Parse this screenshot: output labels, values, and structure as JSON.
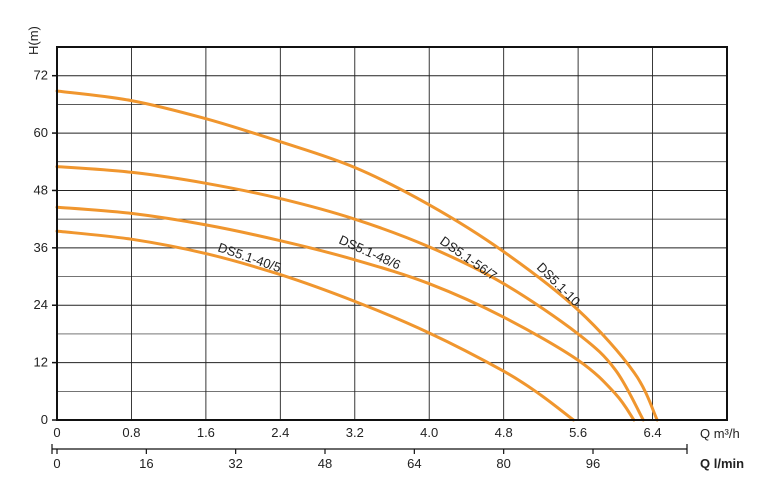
{
  "chart_data": {
    "type": "line",
    "title": "",
    "ylabel": "H(m)",
    "xlabel": "Q m³/h",
    "xlabel_secondary": "Q l/min",
    "xlim": [
      0,
      7.2
    ],
    "ylim": [
      0,
      78
    ],
    "xlim_secondary": [
      0,
      120
    ],
    "grid": true,
    "x_ticks": [
      0,
      0.8,
      1.6,
      2.4,
      3.2,
      4.0,
      4.8,
      5.6,
      6.4
    ],
    "x_tick_labels": [
      "0",
      "0.8",
      "1.6",
      "2.4",
      "3.2",
      "4.0",
      "4.8",
      "5.6",
      "6.4"
    ],
    "x2_ticks": [
      0,
      16,
      32,
      48,
      64,
      80,
      96
    ],
    "x2_tick_labels": [
      "0",
      "16",
      "32",
      "48",
      "64",
      "80",
      "96"
    ],
    "y_ticks": [
      0,
      12,
      24,
      36,
      48,
      60,
      72
    ],
    "y_tick_labels": [
      "0",
      "12",
      "24",
      "36",
      "48",
      "60",
      "72"
    ],
    "series_color": "#f0962e",
    "series": [
      {
        "name": "DS5.1-40/5",
        "x": [
          0,
          0.8,
          1.6,
          2.4,
          3.2,
          4.0,
          4.8,
          5.2,
          5.55
        ],
        "y": [
          39.5,
          37.8,
          34.8,
          30.4,
          24.8,
          18.2,
          10.2,
          5.2,
          0
        ]
      },
      {
        "name": "DS5.1-48/6",
        "x": [
          0,
          0.8,
          1.6,
          2.4,
          3.2,
          4.0,
          4.8,
          5.6,
          6.0,
          6.2
        ],
        "y": [
          44.5,
          43.2,
          40.8,
          37.5,
          33.5,
          28.5,
          21.5,
          12.5,
          5.5,
          0
        ]
      },
      {
        "name": "DS5.1-56/7",
        "x": [
          0,
          0.8,
          1.6,
          2.4,
          3.2,
          4.0,
          4.8,
          5.6,
          6.0,
          6.3
        ],
        "y": [
          53.0,
          51.8,
          49.5,
          46.3,
          42.0,
          36.2,
          28.5,
          18.0,
          10.5,
          0
        ]
      },
      {
        "name": "DS5.1-10",
        "x": [
          0,
          0.8,
          1.6,
          2.4,
          3.2,
          4.0,
          4.8,
          5.6,
          6.2,
          6.45
        ],
        "y": [
          68.8,
          66.8,
          63.0,
          58.2,
          52.8,
          45.0,
          35.2,
          23.0,
          10.0,
          0
        ]
      }
    ]
  }
}
